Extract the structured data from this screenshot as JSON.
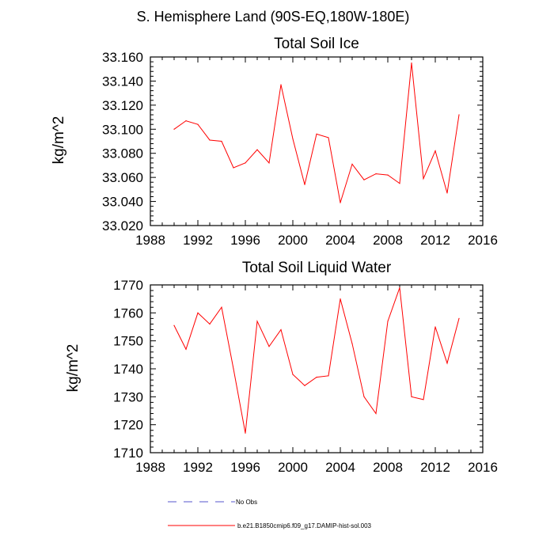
{
  "figure": {
    "supertitle": "S. Hemisphere Land (90S-EQ,180W-180E)",
    "legend": [
      {
        "label": "No Obs",
        "color": "#5555cc",
        "dashed": true
      },
      {
        "label": "b.e21.B1850cmip6.f09_g17.DAMIP-hist-sol.003",
        "color": "#ff0000",
        "dashed": false
      }
    ]
  },
  "chart_data": [
    {
      "type": "line",
      "title": "Total Soil Ice",
      "xlabel": "",
      "ylabel": "kg/m^2",
      "xlim": [
        1988,
        2016
      ],
      "ylim": [
        33.02,
        33.16
      ],
      "xticks": [
        1988,
        1992,
        1996,
        2000,
        2004,
        2008,
        2012,
        2016
      ],
      "xtick_labels": [
        "1988",
        "1992",
        "1996",
        "2000",
        "2004",
        "2008",
        "2012",
        "2016"
      ],
      "yticks": [
        33.02,
        33.04,
        33.06,
        33.08,
        33.1,
        33.12,
        33.14,
        33.16
      ],
      "ytick_labels": [
        "33.020",
        "33.040",
        "33.060",
        "33.080",
        "33.100",
        "33.120",
        "33.140",
        "33.160"
      ],
      "series": [
        {
          "name": "b.e21.B1850cmip6.f09_g17.DAMIP-hist-sol.003",
          "color": "#ff0000",
          "x": [
            1990,
            1991,
            1992,
            1993,
            1994,
            1995,
            1996,
            1997,
            1998,
            1999,
            2000,
            2001,
            2002,
            2003,
            2004,
            2005,
            2006,
            2007,
            2008,
            2009,
            2010,
            2011,
            2012,
            2013,
            2014
          ],
          "y": [
            33.1,
            33.107,
            33.104,
            33.091,
            33.09,
            33.068,
            33.072,
            33.083,
            33.072,
            33.137,
            33.092,
            33.054,
            33.096,
            33.093,
            33.039,
            33.071,
            33.058,
            33.063,
            33.062,
            33.055,
            33.155,
            33.059,
            33.082,
            33.047,
            33.112
          ]
        }
      ]
    },
    {
      "type": "line",
      "title": "Total Soil Liquid Water",
      "xlabel": "",
      "ylabel": "kg/m^2",
      "xlim": [
        1988,
        2016
      ],
      "ylim": [
        1710,
        1770
      ],
      "xticks": [
        1988,
        1992,
        1996,
        2000,
        2004,
        2008,
        2012,
        2016
      ],
      "xtick_labels": [
        "1988",
        "1992",
        "1996",
        "2000",
        "2004",
        "2008",
        "2012",
        "2016"
      ],
      "yticks": [
        1710,
        1720,
        1730,
        1740,
        1750,
        1760,
        1770
      ],
      "ytick_labels": [
        "1710",
        "1720",
        "1730",
        "1740",
        "1750",
        "1760",
        "1770"
      ],
      "series": [
        {
          "name": "b.e21.B1850cmip6.f09_g17.DAMIP-hist-sol.003",
          "color": "#ff0000",
          "x": [
            1990,
            1991,
            1992,
            1993,
            1994,
            1995,
            1996,
            1997,
            1998,
            1999,
            2000,
            2001,
            2002,
            2003,
            2004,
            2005,
            2006,
            2007,
            2008,
            2009,
            2010,
            2011,
            2012,
            2013,
            2014
          ],
          "y": [
            1755.5,
            1747,
            1760,
            1756,
            1762,
            1740,
            1717,
            1757,
            1748,
            1754,
            1738,
            1734,
            1737,
            1737.5,
            1765,
            1749,
            1730,
            1724,
            1757,
            1769,
            1730,
            1729,
            1755,
            1742,
            1758
          ]
        }
      ]
    }
  ]
}
